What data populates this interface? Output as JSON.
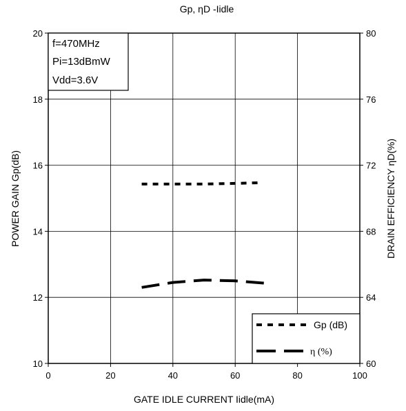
{
  "chart_data": {
    "type": "line",
    "title": "Gp, ηD -Iidle",
    "xlabel": "GATE IDLE CURRENT Iidle(mA)",
    "ylabel_left": "POWER GAIN Gp(dB)",
    "ylabel_right": "DRAIN EFFICIENCY ηD(%)",
    "xlim": [
      0,
      100
    ],
    "ylim_left": [
      10,
      20
    ],
    "ylim_right": [
      60,
      80
    ],
    "x_ticks": [
      "0",
      "20",
      "40",
      "60",
      "80",
      "100"
    ],
    "y_left_ticks": [
      "10",
      "12",
      "14",
      "16",
      "18",
      "20"
    ],
    "y_right_ticks": [
      "60",
      "64",
      "68",
      "72",
      "76",
      "80"
    ],
    "grid": true,
    "legend_position": "bottom-right",
    "conditions": [
      "f=470MHz",
      "Pi=13dBmW",
      "Vdd=3.6V"
    ],
    "series": [
      {
        "name": "Gp (dB)",
        "axis": "left",
        "style": "dotted",
        "x": [
          30,
          40,
          50,
          60,
          68
        ],
        "y": [
          15.43,
          15.43,
          15.43,
          15.45,
          15.47
        ]
      },
      {
        "name": "η (%)",
        "axis": "right",
        "style": "dashed",
        "x": [
          30,
          40,
          50,
          60,
          70
        ],
        "y": [
          64.6,
          64.9,
          65.05,
          65.0,
          64.85
        ]
      }
    ]
  }
}
